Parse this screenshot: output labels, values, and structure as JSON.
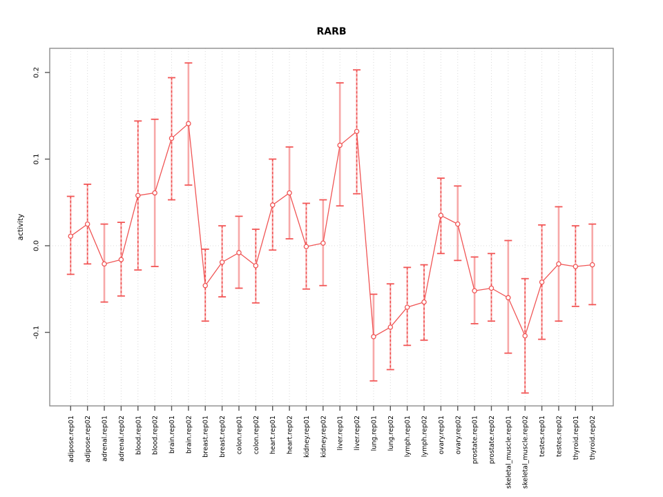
{
  "title": "RARB",
  "chart_data": {
    "type": "line",
    "title": "RARB",
    "xlabel": "",
    "ylabel": "activity",
    "ylim": [
      -0.185,
      0.228
    ],
    "yticks": [
      -0.1,
      0.0,
      0.1,
      0.2
    ],
    "ytick_labels": [
      "-0.1",
      "0.0",
      "0.1",
      "0.2"
    ],
    "grid": "dotted vertical gridline at every category; dotted horizontal line at y=0",
    "legend": "none",
    "marker": "open-circle",
    "error_bars": true,
    "categories": [
      "adipose.rep01",
      "adipose.rep02",
      "adrenal.rep01",
      "adrenal.rep02",
      "blood.rep01",
      "blood.rep02",
      "brain.rep01",
      "brain.rep02",
      "breast.rep01",
      "breast.rep02",
      "colon.rep01",
      "colon.rep02",
      "heart.rep01",
      "heart.rep02",
      "kidney.rep01",
      "kidney.rep02",
      "liver.rep01",
      "liver.rep02",
      "lung.rep01",
      "lung.rep02",
      "lymph.rep01",
      "lymph.rep02",
      "ovary.rep01",
      "ovary.rep02",
      "prostate.rep01",
      "prostate.rep02",
      "skeletal_muscle.rep01",
      "skeletal_muscle.rep02",
      "testes.rep01",
      "testes.rep02",
      "thyroid.rep01",
      "thyroid.rep02"
    ],
    "series": [
      {
        "name": "activity",
        "values": [
          0.011,
          0.025,
          -0.021,
          -0.016,
          0.058,
          0.061,
          0.124,
          0.141,
          -0.046,
          -0.019,
          -0.008,
          -0.023,
          0.047,
          0.061,
          -0.001,
          0.003,
          0.116,
          0.132,
          -0.105,
          -0.094,
          -0.071,
          -0.065,
          0.035,
          0.025,
          -0.052,
          -0.049,
          -0.06,
          -0.104,
          -0.042,
          -0.021,
          -0.024,
          -0.022
        ],
        "err_low": [
          -0.033,
          -0.021,
          -0.065,
          -0.058,
          -0.028,
          -0.024,
          0.053,
          0.07,
          -0.087,
          -0.059,
          -0.049,
          -0.066,
          -0.005,
          0.008,
          -0.05,
          -0.046,
          0.046,
          0.06,
          -0.156,
          -0.143,
          -0.115,
          -0.109,
          -0.009,
          -0.017,
          -0.09,
          -0.087,
          -0.124,
          -0.17,
          -0.108,
          -0.087,
          -0.07,
          -0.068
        ],
        "err_high": [
          0.057,
          0.071,
          0.025,
          0.027,
          0.144,
          0.146,
          0.194,
          0.211,
          -0.004,
          0.023,
          0.034,
          0.019,
          0.1,
          0.114,
          0.049,
          0.053,
          0.188,
          0.203,
          -0.056,
          -0.044,
          -0.025,
          -0.022,
          0.078,
          0.069,
          -0.013,
          -0.009,
          0.006,
          -0.038,
          0.024,
          0.045,
          0.023,
          0.025
        ],
        "bar_styles": [
          "dashed",
          "dashed",
          "solid",
          "dashed",
          "dashed",
          "solid",
          "dashed",
          "solid",
          "dashed",
          "dashed",
          "solid",
          "dashed",
          "dashed",
          "solid",
          "dashed",
          "solid",
          "solid",
          "dashed",
          "solid",
          "dashed",
          "dashed",
          "dashed",
          "dashed",
          "solid",
          "solid",
          "dashed",
          "solid",
          "dashed",
          "dashed",
          "solid",
          "dashed",
          "solid"
        ]
      }
    ],
    "colors": {
      "line": "#f05454",
      "marker_stroke": "#f05454",
      "error_bar_solid": "#f7a8a8",
      "error_bar_dashed": "#ee4b4b",
      "error_bar_cap": "#f25555",
      "gridline": "#d8d8d8",
      "frame": "#8c8c8c",
      "tick": "#555555",
      "text": "#000000"
    }
  }
}
